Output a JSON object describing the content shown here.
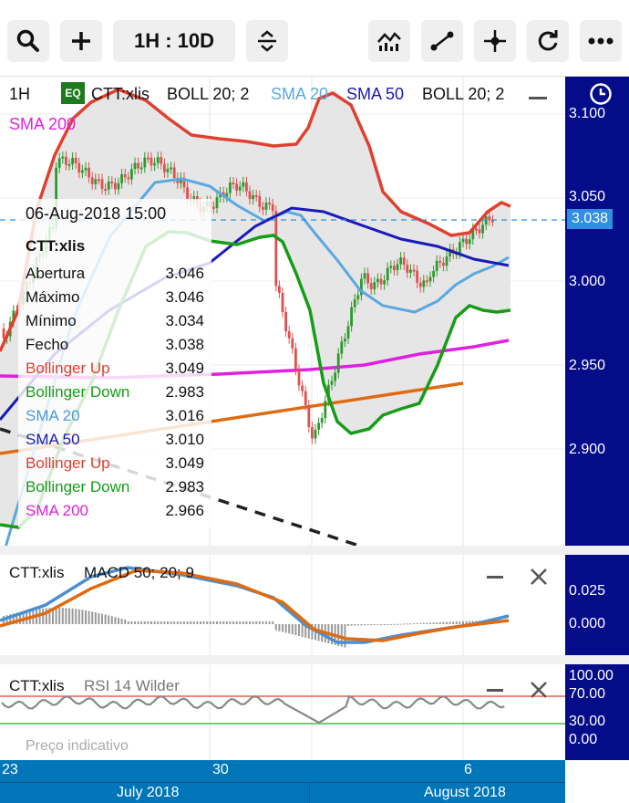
{
  "toolbar": {
    "range_label": "1H : 10D",
    "buttons": [
      "search-icon",
      "plus-icon",
      "range",
      "compare-icon",
      "indicators-icon",
      "draw-line-icon",
      "crosshair-icon",
      "refresh-icon",
      "more-icon"
    ]
  },
  "legend": {
    "interval": "1H",
    "eq_badge": "EQ",
    "symbol": "CTT:xlis",
    "items": [
      {
        "label": "BOLL 20; 2",
        "color": "#111111"
      },
      {
        "label": "SMA 20",
        "color": "#5aa8e0"
      },
      {
        "label": "SMA 50",
        "color": "#1a1ab8"
      },
      {
        "label": "BOLL 20; 2",
        "color": "#111111"
      }
    ],
    "sma200_label": "SMA 200",
    "sma200_color": "#e020e0"
  },
  "price_axis": {
    "ticks": [
      "3.100",
      "3.050",
      "3.000",
      "2.950",
      "2.900"
    ],
    "current_price": "3.038"
  },
  "tooltip": {
    "datetime": "06-Aug-2018 15:00",
    "symbol": "CTT:xlis",
    "rows": [
      {
        "label": "Abertura",
        "value": "3.046",
        "color": "#111111"
      },
      {
        "label": "Máximo",
        "value": "3.046",
        "color": "#111111"
      },
      {
        "label": "Mínimo",
        "value": "3.034",
        "color": "#111111"
      },
      {
        "label": "Fecho",
        "value": "3.038",
        "color": "#111111"
      },
      {
        "label": "Bollinger Up",
        "value": "3.049",
        "color": "#e04030"
      },
      {
        "label": "Bollinger Down",
        "value": "2.983",
        "color": "#169c16"
      },
      {
        "label": "SMA 20",
        "value": "3.016",
        "color": "#4a9ad8"
      },
      {
        "label": "SMA 50",
        "value": "3.010",
        "color": "#1a1ab8"
      },
      {
        "label": "Bollinger Up",
        "value": "3.049",
        "color": "#e04030"
      },
      {
        "label": "Bollinger Down",
        "value": "2.983",
        "color": "#169c16"
      },
      {
        "label": "SMA 200",
        "value": "2.966",
        "color": "#e020e0"
      }
    ]
  },
  "macd": {
    "title": "CTT:xlis",
    "indicator": "MACD 50; 20; 9",
    "ticks": [
      "0.025",
      "0.000"
    ]
  },
  "rsi": {
    "title": "CTT:xlis",
    "indicator": "RSI 14 Wilder",
    "ticks": [
      "100.00",
      "70.00",
      "30.00",
      "0.00"
    ],
    "watermark": "Preço indicativo"
  },
  "xaxis": {
    "day_labels": [
      "23",
      "30",
      "6"
    ],
    "month_labels": [
      "July 2018",
      "August 2018"
    ]
  },
  "colors": {
    "axis_bg": "#040c8a",
    "bollinger_up": "#e04030",
    "bollinger_down": "#169c16",
    "sma20": "#5aa8e0",
    "sma50": "#1a1ab8",
    "sma200": "#e020e0",
    "trendline": "#e06a10",
    "candle_up": "#2e9a2e",
    "candle_down": "#e05050"
  }
}
